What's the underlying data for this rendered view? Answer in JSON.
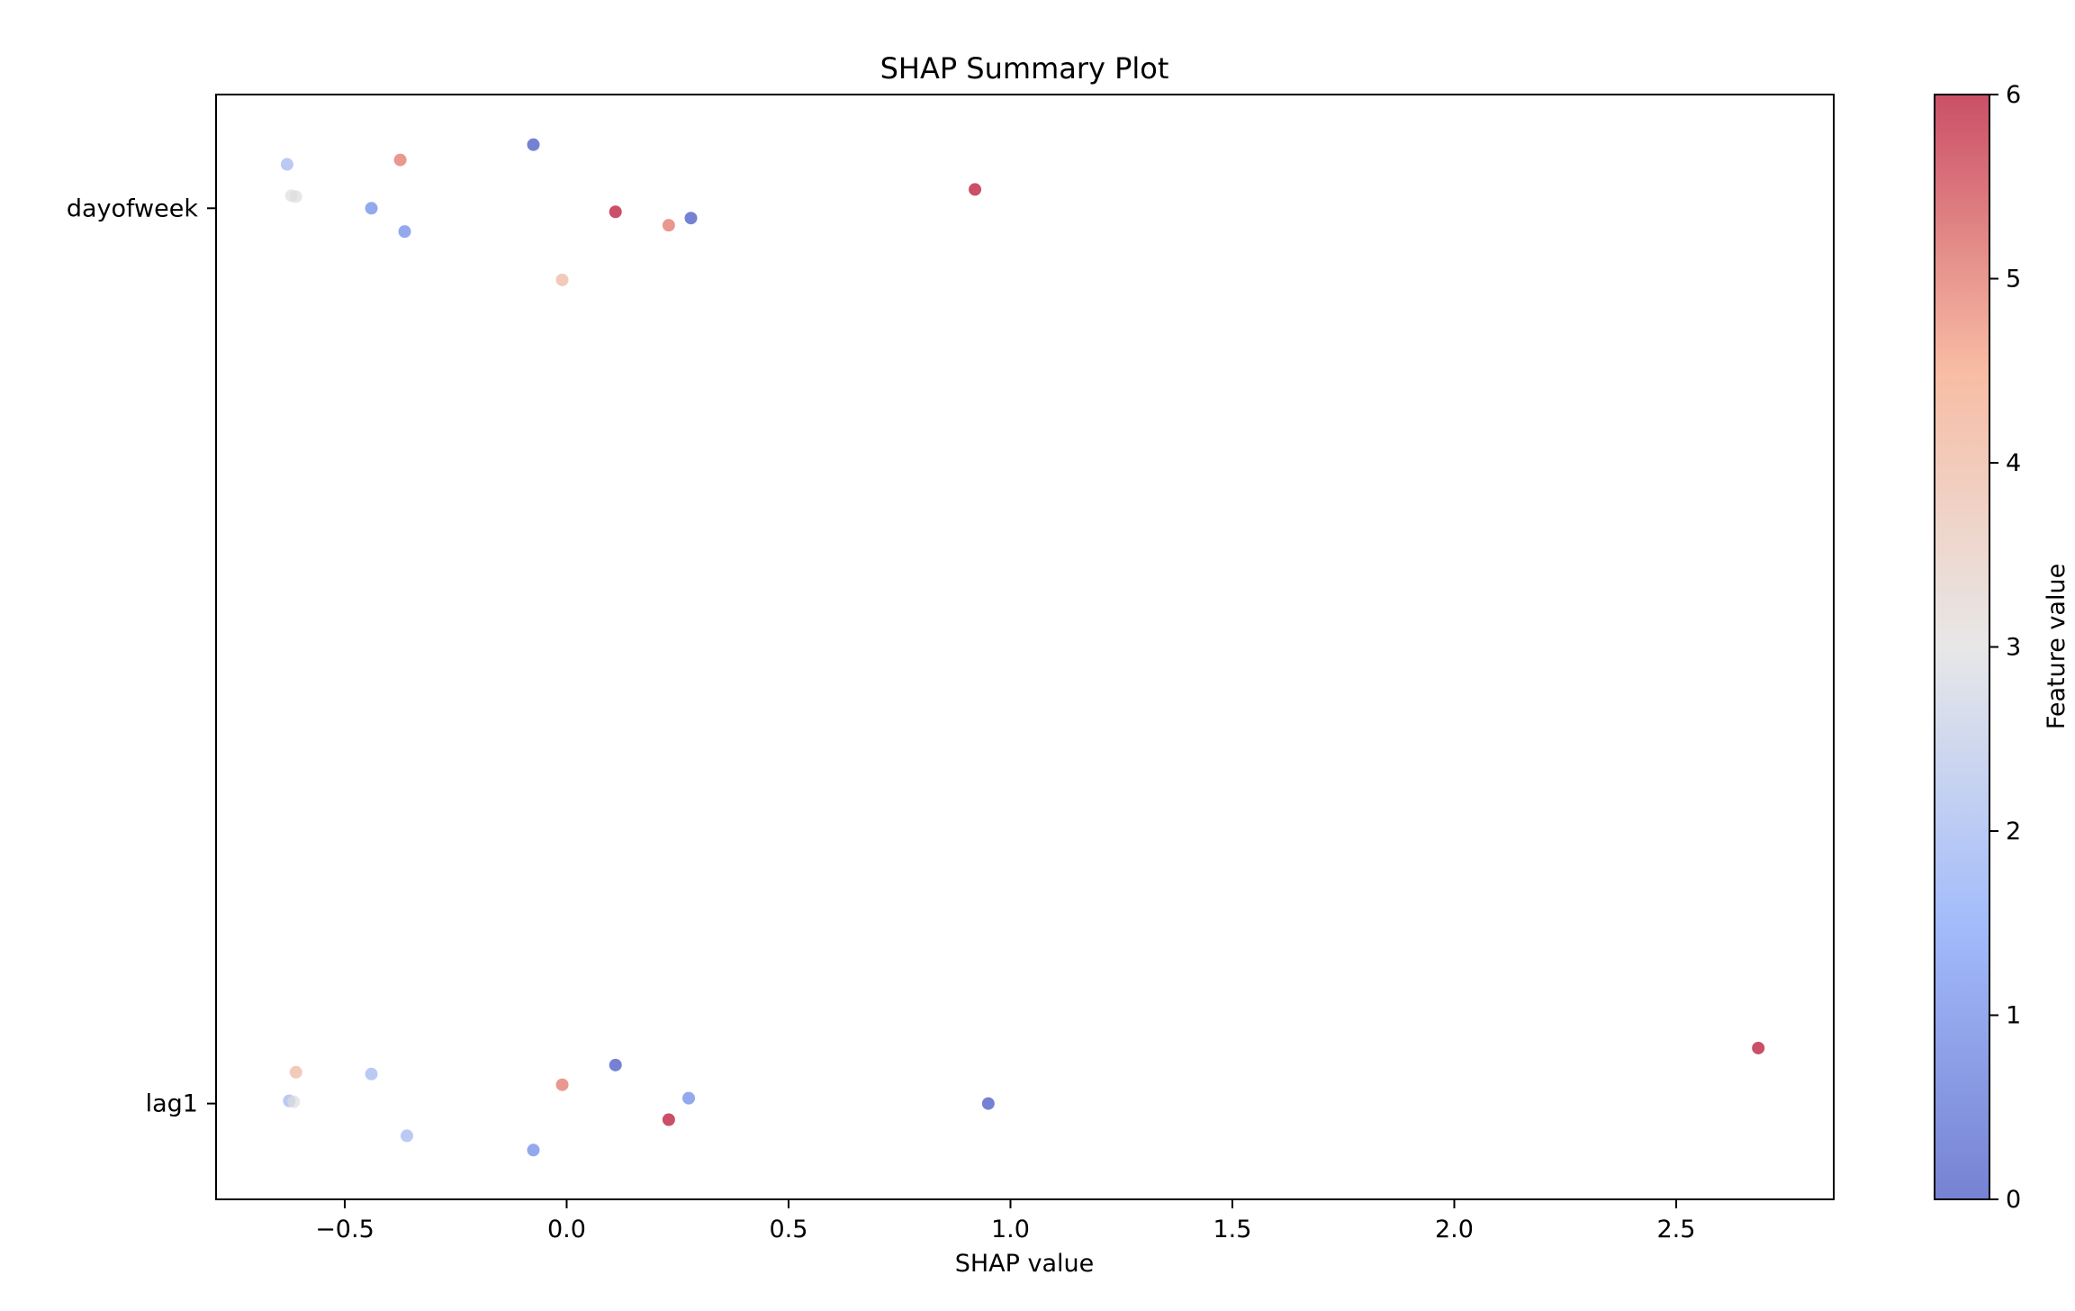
{
  "chart_data": {
    "type": "scatter",
    "title": "SHAP Summary Plot",
    "xlabel": "SHAP value",
    "ylabel": "",
    "xlim": [
      -0.79,
      2.855
    ],
    "xticks": [
      -0.5,
      0.0,
      0.5,
      1.0,
      1.5,
      2.0,
      2.5
    ],
    "xtick_labels": [
      "−0.5",
      "0.0",
      "0.5",
      "1.0",
      "1.5",
      "2.0",
      "2.5"
    ],
    "ylim": [
      -0.107,
      1.127
    ],
    "categories": [
      "lag1",
      "dayofweek"
    ],
    "colorbar": {
      "label": "Feature value",
      "range": [
        0,
        6
      ],
      "ticks": [
        "0",
        "1",
        "2",
        "3",
        "4",
        "5",
        "6"
      ],
      "colormap": "coolwarm",
      "low_color": "#3b4cc0",
      "high_color": "#b40426"
    },
    "grid": false,
    "series": [
      {
        "points": [
          {
            "x": -0.63,
            "y": 1.049,
            "value": 2
          },
          {
            "x": -0.375,
            "y": 1.054,
            "value": 5
          },
          {
            "x": -0.075,
            "y": 1.071,
            "value": 0
          },
          {
            "x": -0.62,
            "y": 1.014,
            "value": 3
          },
          {
            "x": -0.61,
            "y": 1.013,
            "value": 3
          },
          {
            "x": -0.44,
            "y": 1.0,
            "value": 1
          },
          {
            "x": -0.365,
            "y": 0.974,
            "value": 1
          },
          {
            "x": 0.11,
            "y": 0.996,
            "value": 6
          },
          {
            "x": 0.23,
            "y": 0.981,
            "value": 5
          },
          {
            "x": 0.28,
            "y": 0.989,
            "value": 0
          },
          {
            "x": 0.92,
            "y": 1.021,
            "value": 6
          },
          {
            "x": -0.01,
            "y": 0.92,
            "value": 4
          },
          {
            "x": -0.61,
            "y": 0.035,
            "value": 4
          },
          {
            "x": -0.44,
            "y": 0.033,
            "value": 2
          },
          {
            "x": 0.11,
            "y": 0.043,
            "value": 0
          },
          {
            "x": -0.01,
            "y": 0.021,
            "value": 5
          },
          {
            "x": -0.625,
            "y": 0.003,
            "value": 2
          },
          {
            "x": -0.615,
            "y": 0.002,
            "value": 3
          },
          {
            "x": 0.275,
            "y": 0.006,
            "value": 1
          },
          {
            "x": 0.95,
            "y": 0.0,
            "value": 0
          },
          {
            "x": 2.685,
            "y": 0.062,
            "value": 6
          },
          {
            "x": 0.23,
            "y": -0.018,
            "value": 6
          },
          {
            "x": -0.36,
            "y": -0.036,
            "value": 2
          },
          {
            "x": -0.075,
            "y": -0.052,
            "value": 1
          }
        ]
      }
    ]
  }
}
